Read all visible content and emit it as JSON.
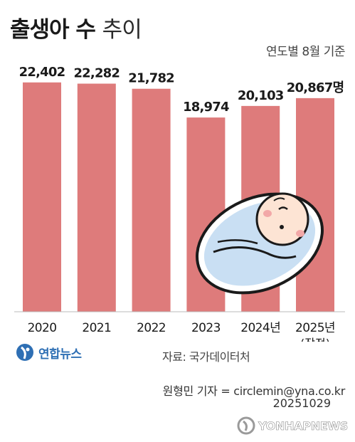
{
  "title": {
    "main": "출생아 수",
    "suffix": "추이"
  },
  "basis_note": "연도별 8월 기준",
  "chart_data": {
    "type": "bar",
    "title": "출생아 수 추이",
    "unit": "명",
    "categories": [
      "2020",
      "2021",
      "2022",
      "2023",
      "2024년",
      "2025년"
    ],
    "category_notes": [
      "",
      "",
      "",
      "",
      "",
      "(잠정)"
    ],
    "values": [
      22402,
      22282,
      21782,
      18974,
      20103,
      20867
    ],
    "value_labels": [
      "22,402",
      "22,282",
      "21,782",
      "18,974",
      "20,103",
      "20,867명"
    ],
    "ylim": [
      0,
      23500
    ],
    "grid": false,
    "bar_color": "#de7b7b"
  },
  "illustration": {
    "name": "swaddled-baby-icon"
  },
  "logo": {
    "text": "연합뉴스",
    "color": "#2e6fb4"
  },
  "source": "자료: 국가데이터처",
  "reporter": "원형민 기자 = circlemin@yna.co.kr",
  "date": "20251029",
  "watermark": "YONHAPNEWS"
}
